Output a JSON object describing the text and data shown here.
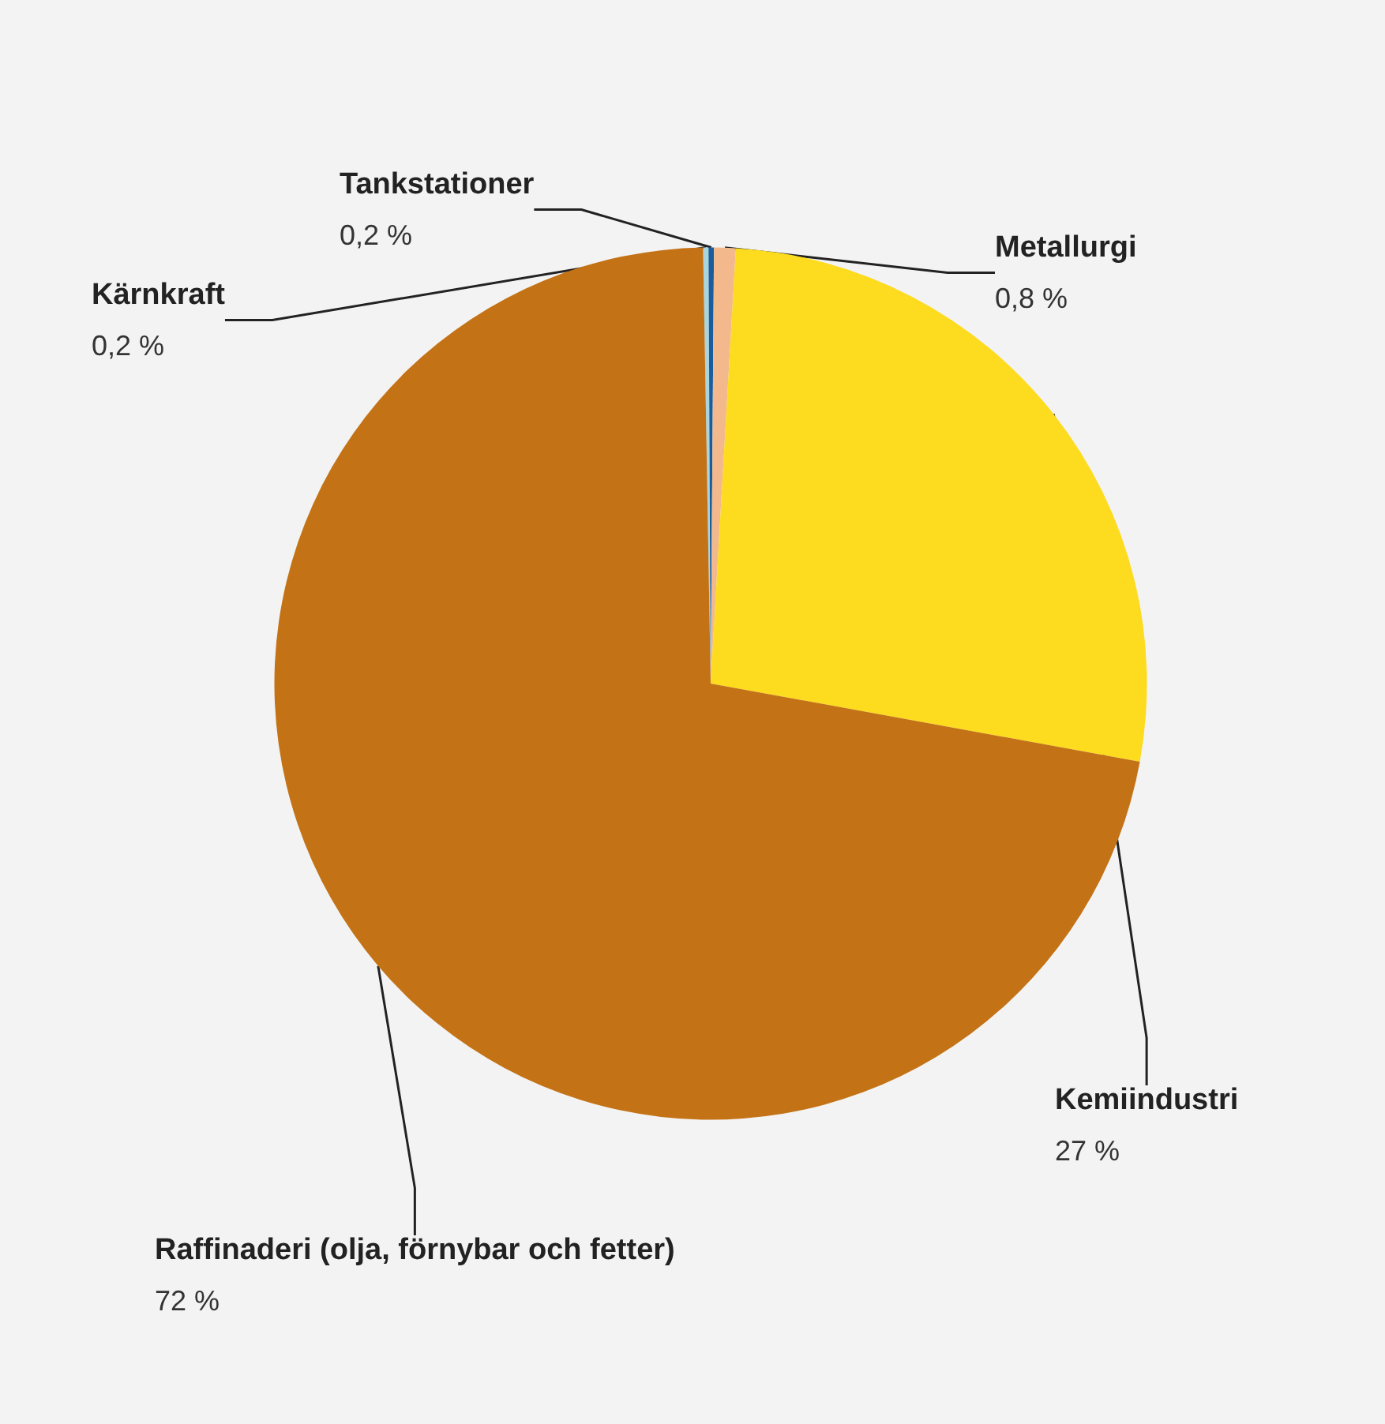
{
  "chart_data": {
    "type": "pie",
    "categories": [
      "Kärnkraft",
      "Tankstationer",
      "Metallurgi",
      "Kemiindustri",
      "Raffinaderi (olja, förnybar och fetter)"
    ],
    "values": [
      0.2,
      0.2,
      0.8,
      27,
      72
    ],
    "value_labels": [
      "0,2 %",
      "0,2 %",
      "0,8 %",
      "27 %",
      "72 %"
    ],
    "colors": [
      "#a9d6de",
      "#1b5d9c",
      "#f3b98c",
      "#fddb1e",
      "#c47216"
    ],
    "legend": false
  }
}
